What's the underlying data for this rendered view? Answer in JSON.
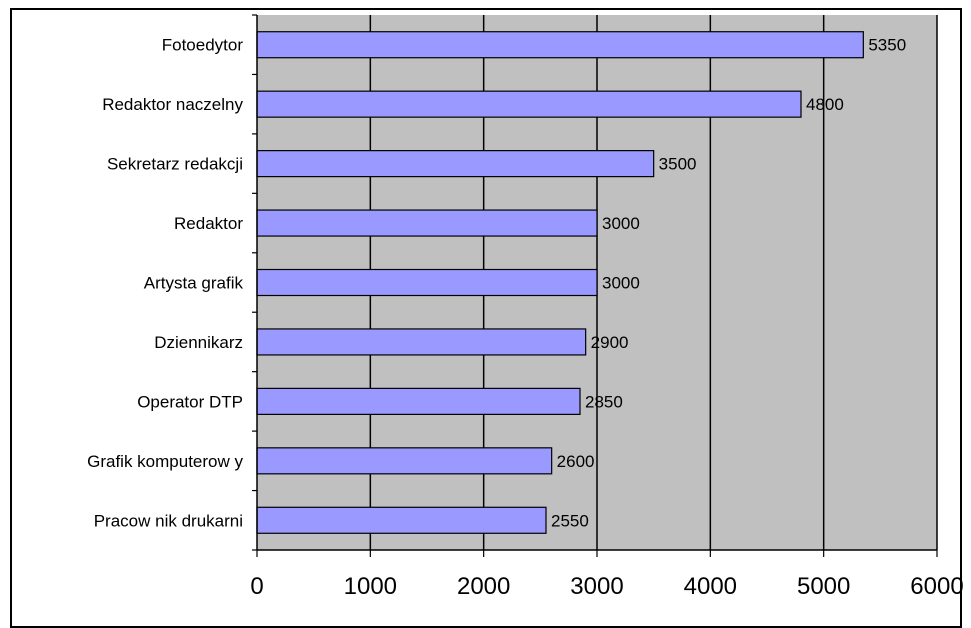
{
  "chart_data": {
    "type": "bar",
    "orientation": "horizontal",
    "categories": [
      "Fotoedytor",
      "Redaktor naczelny",
      "Sekretarz redakcji",
      "Redaktor",
      "Artysta grafik",
      "Dziennikarz",
      "Operator DTP",
      "Grafik komputerow y",
      "Pracow nik drukarni"
    ],
    "values": [
      5350,
      4800,
      3500,
      3000,
      3000,
      2900,
      2850,
      2600,
      2550
    ],
    "data_labels": [
      "5350",
      "4800",
      "3500",
      "3000",
      "3000",
      "2900",
      "2850",
      "2600",
      "2550"
    ],
    "xlim": [
      0,
      6000
    ],
    "xticks": [
      0,
      1000,
      2000,
      3000,
      4000,
      5000,
      6000
    ],
    "xtick_labels": [
      "0",
      "1000",
      "2000",
      "3000",
      "4000",
      "5000",
      "6000"
    ],
    "grid": "vertical",
    "legend": "none",
    "colors": {
      "bar_fill": "#9999ff",
      "bar_stroke": "#000000",
      "plot_background": "#c0c0c0",
      "gridline": "#000000"
    }
  }
}
